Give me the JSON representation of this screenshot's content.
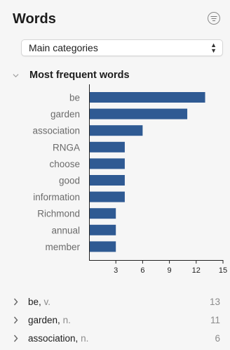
{
  "panel": {
    "title": "Words"
  },
  "filter": {
    "selected": "Main categories"
  },
  "section": {
    "title": "Most frequent words"
  },
  "chart_data": {
    "type": "bar",
    "orientation": "horizontal",
    "categories": [
      "be",
      "garden",
      "association",
      "RNGA",
      "choose",
      "good",
      "information",
      "Richmond",
      "annual",
      "member"
    ],
    "values": [
      13,
      11,
      6,
      4,
      4,
      4,
      4,
      3,
      3,
      3
    ],
    "xlim": [
      0,
      15
    ],
    "xticks": [
      "3",
      "6",
      "9",
      "12",
      "15"
    ],
    "bar_color": "#2f5a93",
    "grid": false
  },
  "word_list": [
    {
      "word": "be,",
      "pos": "v.",
      "count": "13"
    },
    {
      "word": "garden,",
      "pos": "n.",
      "count": "11"
    },
    {
      "word": "association,",
      "pos": "n.",
      "count": "6"
    }
  ]
}
